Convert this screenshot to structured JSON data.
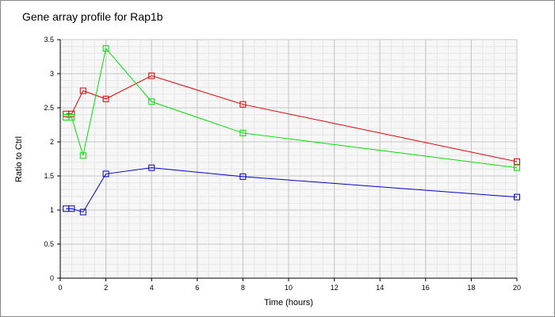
{
  "chart_data": {
    "type": "line",
    "title": "Gene array profile for Rap1b",
    "xlabel": "Time (hours)",
    "ylabel": "Ratio to Ctrl",
    "xlim": [
      0,
      20
    ],
    "ylim": [
      0,
      3.5
    ],
    "xticks": [
      0,
      2,
      4,
      6,
      8,
      10,
      12,
      14,
      16,
      18,
      20
    ],
    "yticks": [
      0,
      0.5,
      1,
      1.5,
      2,
      2.5,
      3,
      3.5
    ],
    "ytick_labels": [
      "0",
      "0.5",
      "1",
      "1.5",
      "2",
      "2.5",
      "3",
      "3.5"
    ],
    "grid": true,
    "marker": "square",
    "x": [
      0.25,
      0.5,
      1,
      2,
      4,
      8,
      20
    ],
    "series": [
      {
        "name": "red",
        "color": "#e00000",
        "values": [
          2.41,
          2.41,
          2.75,
          2.63,
          2.97,
          2.55,
          1.71
        ]
      },
      {
        "name": "green",
        "color": "#00e000",
        "values": [
          2.36,
          2.36,
          1.8,
          3.37,
          2.59,
          2.13,
          1.62
        ]
      },
      {
        "name": "blue",
        "color": "#0000d0",
        "values": [
          1.02,
          1.02,
          0.97,
          1.53,
          1.62,
          1.49,
          1.19
        ]
      }
    ]
  }
}
